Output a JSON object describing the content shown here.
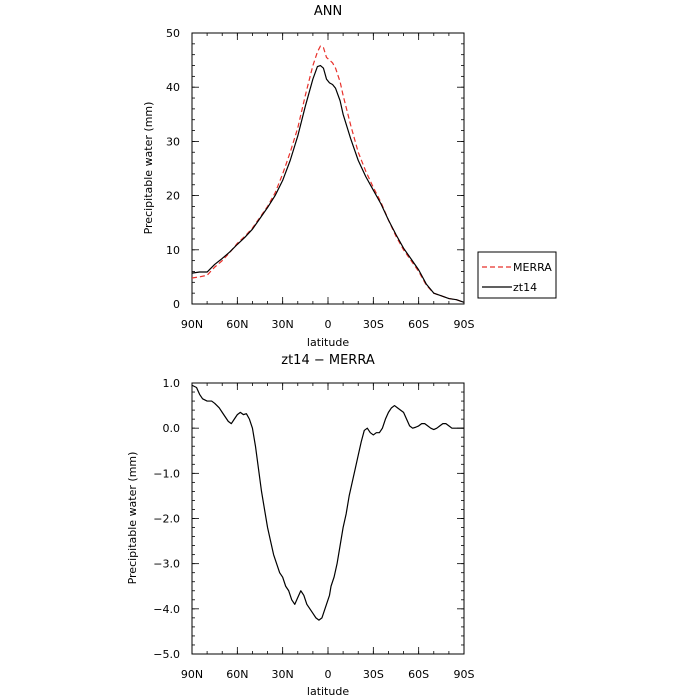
{
  "chart_data": [
    {
      "type": "line",
      "title": "ANN",
      "xlabel": "latitude",
      "ylabel": "Precipitable water (mm)",
      "xlim": [
        90,
        -90
      ],
      "ylim": [
        0,
        50
      ],
      "x_ticks": [
        90,
        60,
        30,
        0,
        -30,
        -60,
        -90
      ],
      "x_tick_labels": [
        "90N",
        "60N",
        "30N",
        "0",
        "30S",
        "60S",
        "90S"
      ],
      "y_ticks": [
        0,
        10,
        20,
        30,
        40,
        50
      ],
      "y_tick_labels": [
        "0",
        "10",
        "20",
        "30",
        "40",
        "50"
      ],
      "grid": false,
      "legend": {
        "placement": "right",
        "entries": [
          "MERRA",
          "zt14"
        ]
      },
      "series": [
        {
          "name": "MERRA",
          "color": "#e8302a",
          "dash": true,
          "x": [
            90,
            85,
            80,
            75,
            70,
            65,
            60,
            55,
            50,
            45,
            40,
            35,
            30,
            25,
            20,
            15,
            10,
            7,
            5,
            3,
            1,
            -1,
            -3,
            -5,
            -8,
            -10,
            -15,
            -20,
            -25,
            -30,
            -35,
            -40,
            -45,
            -50,
            -55,
            -60,
            -65,
            -70,
            -75,
            -80,
            -85,
            -90
          ],
          "y": [
            4.8,
            5.0,
            5.3,
            6.8,
            8.0,
            9.5,
            11.2,
            12.5,
            14.0,
            16.0,
            18.0,
            20.5,
            24.0,
            28.0,
            32.5,
            38.5,
            44.0,
            46.5,
            47.6,
            47.3,
            45.5,
            45.0,
            44.5,
            43.5,
            41.0,
            38.5,
            33.0,
            28.0,
            24.5,
            21.5,
            18.8,
            15.5,
            12.5,
            10.0,
            8.0,
            6.0,
            3.5,
            2.0,
            1.5,
            1.0,
            0.8,
            0.3
          ]
        },
        {
          "name": "zt14",
          "color": "#000000",
          "dash": false,
          "x": [
            90,
            85,
            80,
            75,
            70,
            65,
            60,
            55,
            50,
            45,
            40,
            35,
            30,
            25,
            20,
            15,
            10,
            7,
            5,
            3,
            1,
            -1,
            -3,
            -5,
            -8,
            -10,
            -15,
            -20,
            -25,
            -30,
            -35,
            -40,
            -45,
            -50,
            -55,
            -60,
            -65,
            -70,
            -75,
            -80,
            -85,
            -90
          ],
          "y": [
            5.7,
            5.9,
            5.9,
            7.3,
            8.4,
            9.6,
            11.0,
            12.3,
            13.8,
            15.8,
            17.8,
            20.0,
            22.8,
            26.5,
            31.0,
            36.5,
            41.5,
            43.8,
            44.0,
            43.5,
            41.5,
            40.8,
            40.5,
            39.8,
            37.5,
            35.0,
            30.5,
            26.5,
            23.5,
            21.0,
            18.5,
            15.5,
            12.8,
            10.3,
            8.3,
            6.3,
            3.7,
            2.0,
            1.5,
            1.0,
            0.8,
            0.3
          ]
        }
      ]
    },
    {
      "type": "line",
      "title": "zt14 − MERRA",
      "xlabel": "latitude",
      "ylabel": "Precipitable water (mm)",
      "xlim": [
        90,
        -90
      ],
      "ylim": [
        -5,
        1
      ],
      "x_ticks": [
        90,
        60,
        30,
        0,
        -30,
        -60,
        -90
      ],
      "x_tick_labels": [
        "90N",
        "60N",
        "30N",
        "0",
        "30S",
        "60S",
        "90S"
      ],
      "y_ticks": [
        -5,
        -4,
        -3,
        -2,
        -1,
        0,
        1
      ],
      "y_tick_labels": [
        "−5.0",
        "−4.0",
        "−3.0",
        "−2.0",
        "−1.0",
        "0.0",
        "1.0"
      ],
      "grid": false,
      "series": [
        {
          "color": "#000000",
          "dash": false,
          "x": [
            90,
            87,
            85,
            83,
            80,
            77,
            75,
            72,
            70,
            68,
            66,
            64,
            62,
            60,
            58,
            56,
            54,
            52,
            50,
            48,
            46,
            44,
            42,
            40,
            38,
            36,
            34,
            32,
            30,
            28,
            26,
            24,
            22,
            20,
            18,
            16,
            14,
            12,
            10,
            8,
            6,
            4,
            3,
            2,
            1,
            0,
            -1,
            -2,
            -4,
            -6,
            -8,
            -10,
            -12,
            -14,
            -16,
            -18,
            -20,
            -22,
            -24,
            -26,
            -28,
            -30,
            -32,
            -34,
            -36,
            -38,
            -40,
            -42,
            -44,
            -46,
            -48,
            -50,
            -52,
            -54,
            -56,
            -58,
            -60,
            -62,
            -64,
            -66,
            -68,
            -70,
            -72,
            -74,
            -76,
            -78,
            -80,
            -82,
            -84,
            -86,
            -88,
            -90
          ],
          "y": [
            0.95,
            0.9,
            0.75,
            0.65,
            0.6,
            0.6,
            0.55,
            0.45,
            0.35,
            0.25,
            0.15,
            0.1,
            0.2,
            0.3,
            0.35,
            0.3,
            0.32,
            0.2,
            0.0,
            -0.4,
            -0.9,
            -1.4,
            -1.8,
            -2.2,
            -2.5,
            -2.8,
            -3.0,
            -3.2,
            -3.3,
            -3.5,
            -3.6,
            -3.8,
            -3.9,
            -3.75,
            -3.6,
            -3.7,
            -3.9,
            -4.0,
            -4.1,
            -4.2,
            -4.25,
            -4.2,
            -4.1,
            -4.0,
            -3.9,
            -3.8,
            -3.7,
            -3.5,
            -3.3,
            -3.0,
            -2.6,
            -2.2,
            -1.9,
            -1.5,
            -1.2,
            -0.9,
            -0.6,
            -0.3,
            -0.05,
            0.0,
            -0.1,
            -0.15,
            -0.1,
            -0.1,
            0.0,
            0.2,
            0.35,
            0.45,
            0.5,
            0.45,
            0.4,
            0.35,
            0.2,
            0.05,
            0.0,
            0.02,
            0.05,
            0.1,
            0.1,
            0.05,
            0.0,
            -0.03,
            0.0,
            0.05,
            0.1,
            0.1,
            0.05,
            0.0,
            0.0,
            0.0,
            0.0,
            0.0
          ]
        }
      ]
    }
  ]
}
